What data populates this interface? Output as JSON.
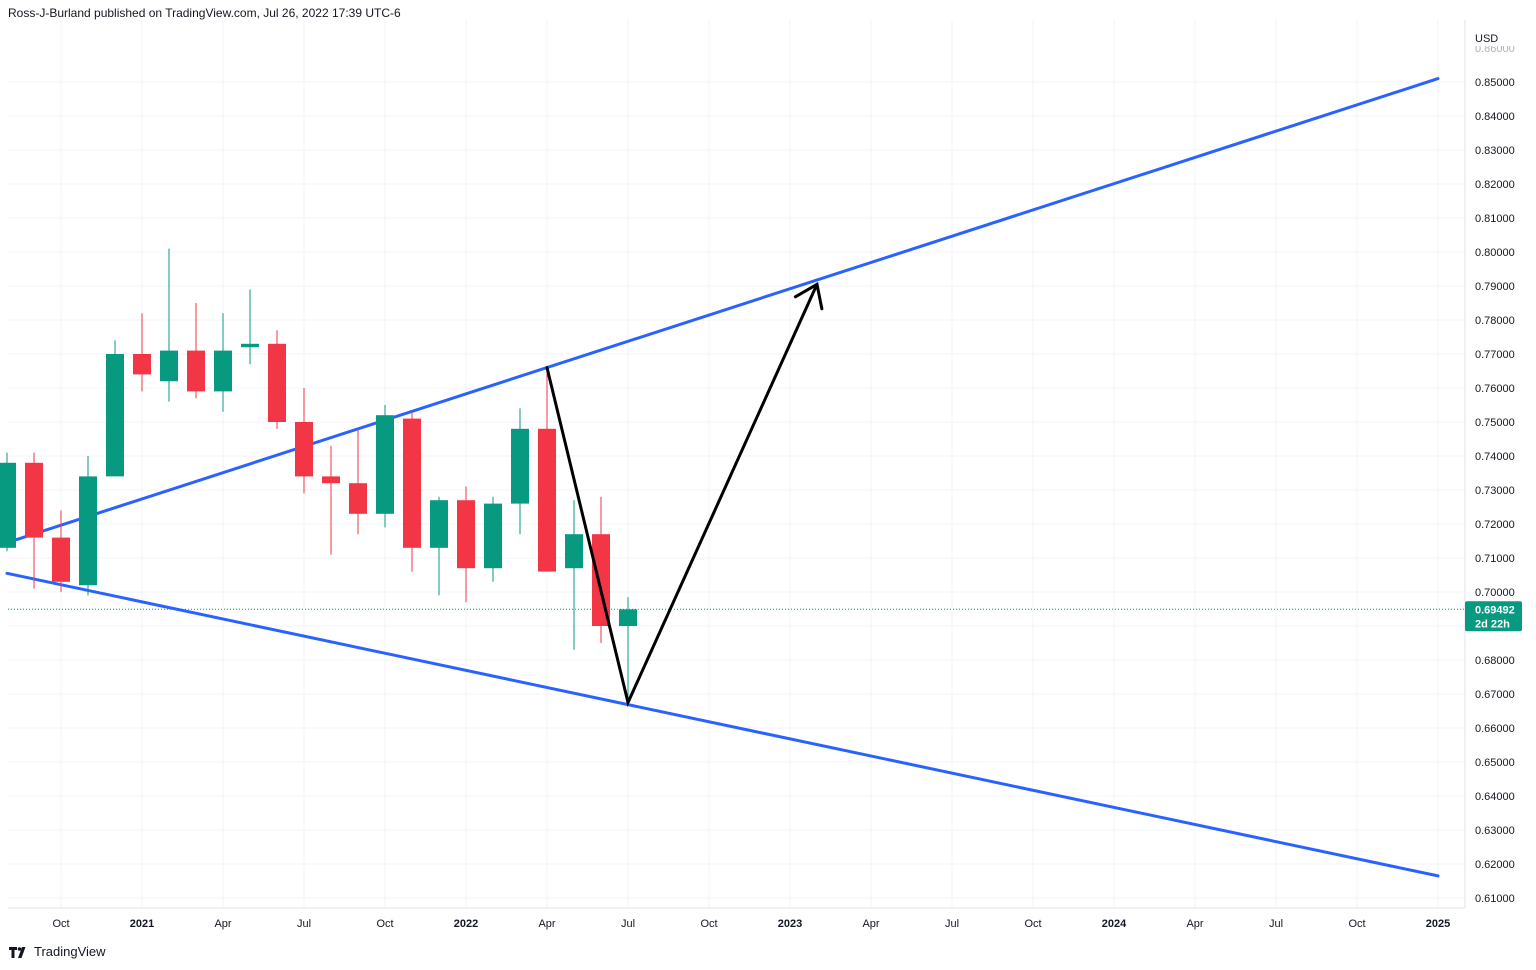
{
  "header": {
    "attribution": "Ross-J-Burland published on TradingView.com, Jul 26, 2022 17:39 UTC-6"
  },
  "footer": {
    "brand": "TradingView",
    "logo_icon": "tradingview-logo-icon"
  },
  "colors": {
    "bull": "#089981",
    "bear": "#f23645",
    "trendline": "#2962ff",
    "arrow": "#000000",
    "grid": "#f0f3fa",
    "axis_text": "#131722"
  },
  "chart_data": {
    "type": "candlestick",
    "timeframe": "monthly",
    "currency_label": "USD",
    "ylim": [
      0.605,
      0.86
    ],
    "y_ticks": [
      "0.61000",
      "0.62000",
      "0.63000",
      "0.64000",
      "0.65000",
      "0.66000",
      "0.67000",
      "0.68000",
      "0.69000",
      "0.70000",
      "0.71000",
      "0.72000",
      "0.73000",
      "0.74000",
      "0.75000",
      "0.76000",
      "0.77000",
      "0.78000",
      "0.79000",
      "0.80000",
      "0.81000",
      "0.82000",
      "0.83000",
      "0.84000",
      "0.85000"
    ],
    "x_ticks": [
      {
        "label": "Oct",
        "date": "2020-10",
        "year": false
      },
      {
        "label": "2021",
        "date": "2021-01",
        "year": true
      },
      {
        "label": "Apr",
        "date": "2021-04",
        "year": false
      },
      {
        "label": "Jul",
        "date": "2021-07",
        "year": false
      },
      {
        "label": "Oct",
        "date": "2021-10",
        "year": false
      },
      {
        "label": "2022",
        "date": "2022-01",
        "year": true
      },
      {
        "label": "Apr",
        "date": "2022-04",
        "year": false
      },
      {
        "label": "Jul",
        "date": "2022-07",
        "year": false
      },
      {
        "label": "Oct",
        "date": "2022-10",
        "year": false
      },
      {
        "label": "2023",
        "date": "2023-01",
        "year": true
      },
      {
        "label": "Apr",
        "date": "2023-04",
        "year": false
      },
      {
        "label": "Jul",
        "date": "2023-07",
        "year": false
      },
      {
        "label": "Oct",
        "date": "2023-10",
        "year": false
      },
      {
        "label": "2024",
        "date": "2024-01",
        "year": true
      },
      {
        "label": "Apr",
        "date": "2024-04",
        "year": false
      },
      {
        "label": "Jul",
        "date": "2024-07",
        "year": false
      },
      {
        "label": "Oct",
        "date": "2024-10",
        "year": false
      },
      {
        "label": "2025",
        "date": "2025-01",
        "year": true
      }
    ],
    "candles": [
      {
        "date": "2020-08",
        "o": 0.713,
        "h": 0.741,
        "l": 0.712,
        "c": 0.738
      },
      {
        "date": "2020-09",
        "o": 0.738,
        "h": 0.741,
        "l": 0.701,
        "c": 0.716
      },
      {
        "date": "2020-10",
        "o": 0.716,
        "h": 0.724,
        "l": 0.7,
        "c": 0.703
      },
      {
        "date": "2020-11",
        "o": 0.702,
        "h": 0.74,
        "l": 0.699,
        "c": 0.734
      },
      {
        "date": "2020-12",
        "o": 0.734,
        "h": 0.774,
        "l": 0.734,
        "c": 0.77
      },
      {
        "date": "2021-01",
        "o": 0.77,
        "h": 0.782,
        "l": 0.759,
        "c": 0.764
      },
      {
        "date": "2021-02",
        "o": 0.762,
        "h": 0.801,
        "l": 0.756,
        "c": 0.771
      },
      {
        "date": "2021-03",
        "o": 0.771,
        "h": 0.785,
        "l": 0.757,
        "c": 0.759
      },
      {
        "date": "2021-04",
        "o": 0.759,
        "h": 0.782,
        "l": 0.753,
        "c": 0.771
      },
      {
        "date": "2021-05",
        "o": 0.772,
        "h": 0.789,
        "l": 0.767,
        "c": 0.773
      },
      {
        "date": "2021-06",
        "o": 0.773,
        "h": 0.777,
        "l": 0.748,
        "c": 0.75
      },
      {
        "date": "2021-07",
        "o": 0.75,
        "h": 0.76,
        "l": 0.729,
        "c": 0.734
      },
      {
        "date": "2021-08",
        "o": 0.734,
        "h": 0.743,
        "l": 0.711,
        "c": 0.732
      },
      {
        "date": "2021-09",
        "o": 0.732,
        "h": 0.748,
        "l": 0.717,
        "c": 0.723
      },
      {
        "date": "2021-10",
        "o": 0.723,
        "h": 0.755,
        "l": 0.719,
        "c": 0.752
      },
      {
        "date": "2021-11",
        "o": 0.751,
        "h": 0.753,
        "l": 0.706,
        "c": 0.713
      },
      {
        "date": "2021-12",
        "o": 0.713,
        "h": 0.728,
        "l": 0.699,
        "c": 0.727
      },
      {
        "date": "2022-01",
        "o": 0.727,
        "h": 0.731,
        "l": 0.697,
        "c": 0.707
      },
      {
        "date": "2022-02",
        "o": 0.707,
        "h": 0.728,
        "l": 0.703,
        "c": 0.726
      },
      {
        "date": "2022-03",
        "o": 0.726,
        "h": 0.754,
        "l": 0.717,
        "c": 0.748
      },
      {
        "date": "2022-04",
        "o": 0.748,
        "h": 0.766,
        "l": 0.706,
        "c": 0.706
      },
      {
        "date": "2022-05",
        "o": 0.707,
        "h": 0.727,
        "l": 0.683,
        "c": 0.717
      },
      {
        "date": "2022-06",
        "o": 0.717,
        "h": 0.728,
        "l": 0.685,
        "c": 0.69
      },
      {
        "date": "2022-07",
        "o": 0.69,
        "h": 0.6985,
        "l": 0.6685,
        "c": 0.6949
      }
    ],
    "last_price": {
      "value": 0.69492,
      "label": "0.69492",
      "countdown": "2d 22h"
    },
    "trendlines": [
      {
        "name": "",
        "points": [
          {
            "date": "2020-08",
            "price": 0.7145
          },
          {
            "date": "2025-01",
            "price": 0.851
          }
        ]
      },
      {
        "name": "",
        "points": [
          {
            "date": "2020-08",
            "price": 0.7055
          },
          {
            "date": "2025-01",
            "price": 0.6165
          }
        ]
      }
    ],
    "arrow_path": [
      {
        "date": "2022-04",
        "price": 0.766
      },
      {
        "date": "2022-07",
        "price": 0.6675
      },
      {
        "date": "2023-02",
        "price": 0.7905
      }
    ],
    "grid": true,
    "legend": "none"
  }
}
